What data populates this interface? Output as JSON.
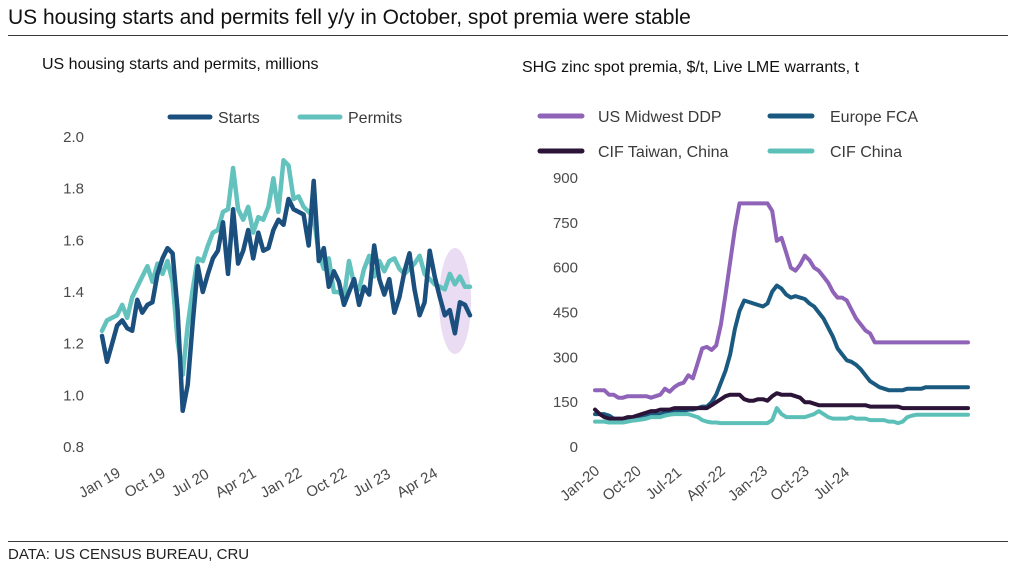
{
  "headline": "US housing starts and permits fell y/y in October, spot premia were stable",
  "source": "DATA: US CENSUS BUREAU, CRU",
  "colors": {
    "starts": "#1b4f7e",
    "permits": "#63c2bd",
    "us_midwest": "#8f63b8",
    "europe": "#1b5a80",
    "taiwan": "#2b1438",
    "china": "#5cc0b8",
    "highlight": "#e9dcf3"
  },
  "chart_data": [
    {
      "type": "line",
      "title": "US housing starts and permits, millions",
      "ylim": [
        0.8,
        2.0
      ],
      "y_ticks": [
        "2.0",
        "1.8",
        "1.6",
        "1.4",
        "1.2",
        "1.0",
        "0.8"
      ],
      "x_tick_labels": [
        "Jan 19",
        "Oct 19",
        "Jul 20",
        "Apr 21",
        "Jan 22",
        "Oct 22",
        "Jul 23",
        "Apr 24"
      ],
      "x_range": [
        "Jan 19",
        "Oct 24"
      ],
      "grid": false,
      "legend": "top",
      "highlight": "last three months (Aug 24 – Oct 24)",
      "series": [
        {
          "name": "Starts",
          "color_key": "starts",
          "values": [
            1.23,
            1.13,
            1.2,
            1.27,
            1.29,
            1.26,
            1.25,
            1.37,
            1.32,
            1.35,
            1.36,
            1.47,
            1.53,
            1.57,
            1.55,
            1.33,
            0.94,
            1.04,
            1.28,
            1.5,
            1.4,
            1.47,
            1.53,
            1.56,
            1.67,
            1.47,
            1.72,
            1.51,
            1.56,
            1.64,
            1.53,
            1.63,
            1.56,
            1.57,
            1.64,
            1.68,
            1.66,
            1.76,
            1.72,
            1.71,
            1.7,
            1.58,
            1.83,
            1.52,
            1.57,
            1.42,
            1.48,
            1.44,
            1.35,
            1.4,
            1.45,
            1.35,
            1.42,
            1.39,
            1.58,
            1.45,
            1.39,
            1.45,
            1.32,
            1.38,
            1.48,
            1.55,
            1.41,
            1.31,
            1.36,
            1.56,
            1.46,
            1.38,
            1.31,
            1.33,
            1.24,
            1.36,
            1.35,
            1.31
          ]
        },
        {
          "name": "Permits",
          "color_key": "permits",
          "values": [
            1.25,
            1.29,
            1.3,
            1.31,
            1.35,
            1.3,
            1.38,
            1.42,
            1.46,
            1.5,
            1.44,
            1.51,
            1.47,
            1.52,
            1.44,
            1.21,
            1.08,
            1.27,
            1.41,
            1.53,
            1.52,
            1.58,
            1.63,
            1.64,
            1.71,
            1.72,
            1.88,
            1.72,
            1.68,
            1.73,
            1.63,
            1.69,
            1.68,
            1.73,
            1.84,
            1.71,
            1.91,
            1.89,
            1.76,
            1.77,
            1.73,
            1.71,
            1.69,
            1.55,
            1.49,
            1.53,
            1.4,
            1.4,
            1.38,
            1.52,
            1.43,
            1.41,
            1.49,
            1.54,
            1.46,
            1.52,
            1.48,
            1.52,
            1.53,
            1.49,
            1.47,
            1.49,
            1.51,
            1.54,
            1.47,
            1.45,
            1.43,
            1.42,
            1.41,
            1.47,
            1.43,
            1.46,
            1.42,
            1.42
          ]
        }
      ]
    },
    {
      "type": "line",
      "title": "SHG zinc spot premia, $/t, Live LME warrants, t",
      "ylim": [
        0,
        900
      ],
      "y_ticks": [
        "900",
        "750",
        "600",
        "450",
        "300",
        "150",
        "0"
      ],
      "x_tick_labels": [
        "Jan-20",
        "Oct-20",
        "Jul-21",
        "Apr-22",
        "Jan-23",
        "Oct-23",
        "Jul-24"
      ],
      "x_range": [
        "Jan-20",
        "Nov-24"
      ],
      "grid": false,
      "legend": "top",
      "series": [
        {
          "name": "US Midwest DDP",
          "color_key": "us_midwest",
          "values": [
            190,
            190,
            190,
            175,
            175,
            165,
            165,
            170,
            170,
            170,
            170,
            170,
            165,
            170,
            175,
            195,
            185,
            200,
            210,
            215,
            240,
            230,
            280,
            330,
            335,
            325,
            340,
            410,
            510,
            620,
            730,
            815,
            815,
            815,
            815,
            815,
            815,
            815,
            790,
            690,
            700,
            650,
            600,
            590,
            610,
            640,
            625,
            600,
            590,
            570,
            550,
            520,
            500,
            500,
            490,
            460,
            430,
            410,
            390,
            380,
            350,
            350,
            350,
            350,
            350,
            350,
            350,
            350,
            350,
            350,
            350,
            350,
            350,
            350,
            350,
            350,
            350,
            350,
            350,
            350,
            350
          ]
        },
        {
          "name": "Europe FCA",
          "color_key": "europe",
          "values": [
            110,
            110,
            110,
            105,
            95,
            90,
            90,
            90,
            90,
            90,
            100,
            105,
            110,
            110,
            110,
            115,
            115,
            120,
            120,
            120,
            125,
            125,
            130,
            135,
            135,
            150,
            175,
            215,
            255,
            310,
            395,
            455,
            490,
            485,
            480,
            475,
            470,
            480,
            520,
            540,
            530,
            510,
            500,
            505,
            500,
            495,
            480,
            470,
            450,
            430,
            400,
            370,
            330,
            310,
            290,
            285,
            275,
            260,
            240,
            220,
            210,
            200,
            195,
            190,
            190,
            190,
            190,
            195,
            195,
            195,
            195,
            200,
            200,
            200,
            200,
            200,
            200,
            200,
            200,
            200,
            200
          ]
        },
        {
          "name": "CIF Taiwan, China",
          "color_key": "taiwan",
          "values": [
            125,
            110,
            100,
            95,
            95,
            95,
            95,
            100,
            100,
            105,
            110,
            115,
            120,
            120,
            125,
            125,
            125,
            130,
            130,
            130,
            130,
            130,
            130,
            130,
            130,
            140,
            150,
            160,
            170,
            175,
            175,
            175,
            160,
            155,
            155,
            160,
            160,
            155,
            170,
            180,
            175,
            175,
            175,
            170,
            165,
            150,
            150,
            145,
            140,
            140,
            140,
            140,
            140,
            140,
            140,
            140,
            140,
            140,
            140,
            135,
            135,
            135,
            135,
            135,
            135,
            135,
            130,
            130,
            130,
            130,
            130,
            130,
            130,
            130,
            130,
            130,
            130,
            130,
            130,
            130,
            130
          ]
        },
        {
          "name": "CIF China",
          "color_key": "china",
          "values": [
            85,
            85,
            85,
            82,
            82,
            82,
            82,
            85,
            88,
            90,
            92,
            95,
            100,
            100,
            100,
            105,
            108,
            110,
            110,
            110,
            110,
            105,
            100,
            90,
            85,
            82,
            82,
            80,
            80,
            80,
            80,
            80,
            80,
            80,
            80,
            80,
            80,
            80,
            90,
            130,
            110,
            100,
            100,
            100,
            100,
            100,
            105,
            110,
            120,
            110,
            100,
            95,
            95,
            95,
            95,
            100,
            95,
            95,
            95,
            90,
            90,
            90,
            90,
            85,
            85,
            80,
            85,
            100,
            105,
            108,
            108,
            108,
            108,
            108,
            108,
            108,
            108,
            108,
            108,
            108,
            108
          ]
        }
      ]
    }
  ]
}
